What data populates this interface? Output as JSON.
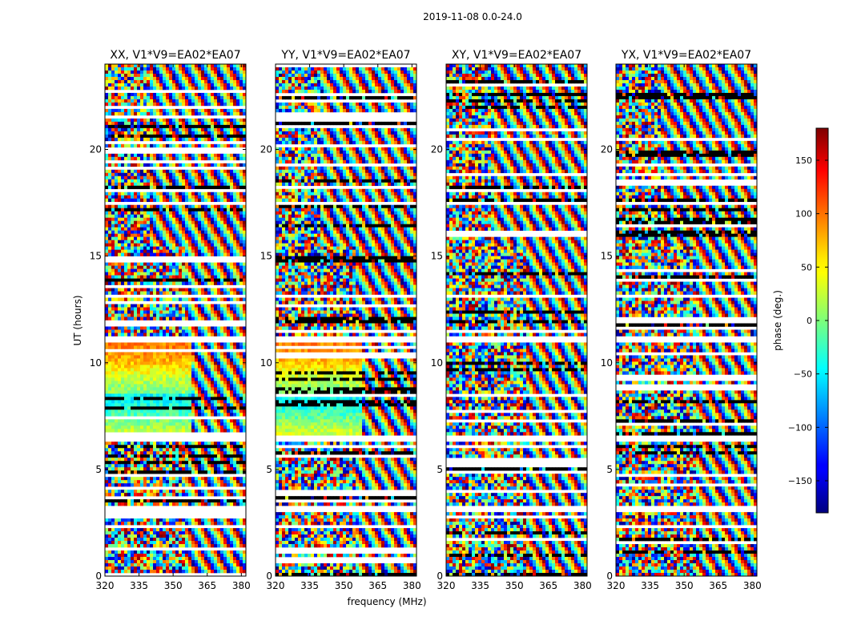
{
  "chart_data": {
    "type": "heatmap",
    "suptitle": "2019-11-08 0.0-24.0",
    "xlabel": "frequency (MHz)",
    "ylabel": "UT (hours)",
    "xlim": [
      320,
      382
    ],
    "ylim": [
      0,
      24
    ],
    "xticks": [
      320,
      335,
      350,
      365,
      380
    ],
    "yticks": [
      0,
      5,
      10,
      15,
      20
    ],
    "panels": [
      {
        "title": "XX, V1*V9=EA02*EA07",
        "polarization": "XX"
      },
      {
        "title": "YY, V1*V9=EA02*EA07",
        "polarization": "YY"
      },
      {
        "title": "XY, V1*V9=EA02*EA07",
        "polarization": "XY"
      },
      {
        "title": "YX, V1*V9=EA02*EA07",
        "polarization": "YX"
      }
    ],
    "colorbar": {
      "label": "phase (deg.)",
      "colormap": "jet",
      "range": [
        -180,
        180
      ],
      "ticks": [
        -150,
        -100,
        -50,
        0,
        50,
        100,
        150
      ],
      "tick_labels": [
        "−150",
        "−100",
        "−50",
        "0",
        "50",
        "100",
        "150"
      ]
    },
    "empty_bands_ut": [
      [
        2.95,
        3.25
      ],
      [
        6.25,
        6.55
      ],
      [
        10.9,
        11.3
      ],
      [
        13.1,
        13.25
      ],
      [
        17.4,
        17.6
      ]
    ]
  }
}
